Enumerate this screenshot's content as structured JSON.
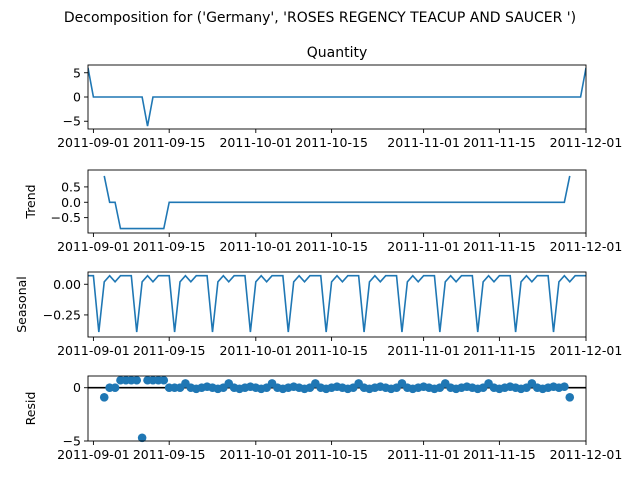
{
  "figure": {
    "suptitle": "Decomposition for ('Germany', 'ROSES REGENCY TEACUP AND SAUCER ')"
  },
  "colors": {
    "series": "#1f77b4",
    "axis": "#000000",
    "zero_line": "#000000"
  },
  "chart_data": [
    {
      "type": "line",
      "name": "observed",
      "title": "Quantity",
      "ylabel": "",
      "xlim": [
        "2011-08-31",
        "2011-12-01"
      ],
      "ylim": [
        -6.6,
        6.6
      ],
      "yticks": [
        -5,
        0,
        5
      ],
      "ytick_labels": [
        "−5",
        "0",
        "5"
      ],
      "xticks": [
        "2011-09-01",
        "2011-09-15",
        "2011-10-01",
        "2011-10-15",
        "2011-11-01",
        "2011-11-15",
        "2011-12-01"
      ],
      "grid": false,
      "x": [
        "2011-08-31",
        "2011-09-01",
        "2011-09-02",
        "2011-09-03",
        "2011-09-04",
        "2011-09-05",
        "2011-09-06",
        "2011-09-07",
        "2011-09-08",
        "2011-09-09",
        "2011-09-10",
        "2011-09-11",
        "2011-09-12",
        "2011-09-13",
        "2011-09-14",
        "2011-09-15",
        "2011-11-28",
        "2011-11-29",
        "2011-11-30",
        "2011-12-01"
      ],
      "values": [
        6,
        0,
        0,
        0,
        0,
        0,
        0,
        0,
        0,
        0,
        0,
        -6,
        0,
        0,
        0,
        0,
        0,
        0,
        0,
        6
      ],
      "fill_rest": 0
    },
    {
      "type": "line",
      "name": "trend",
      "title": "",
      "ylabel": "Trend",
      "xlim": [
        "2011-08-31",
        "2011-12-01"
      ],
      "ylim": [
        -1.0,
        1.05
      ],
      "yticks": [
        -0.5,
        0.0,
        0.5
      ],
      "ytick_labels": [
        "−0.5",
        "0.0",
        "0.5"
      ],
      "xticks": [
        "2011-09-01",
        "2011-09-15",
        "2011-10-01",
        "2011-10-15",
        "2011-11-01",
        "2011-11-15",
        "2011-12-01"
      ],
      "grid": false,
      "x": [
        "2011-09-03",
        "2011-09-04",
        "2011-09-05",
        "2011-09-06",
        "2011-09-07",
        "2011-09-08",
        "2011-09-09",
        "2011-09-10",
        "2011-09-11",
        "2011-09-12",
        "2011-09-13",
        "2011-09-14",
        "2011-09-15",
        "2011-11-27",
        "2011-11-28"
      ],
      "values": [
        0.857,
        0.0,
        0.0,
        -0.857,
        -0.857,
        -0.857,
        -0.857,
        -0.857,
        -0.857,
        -0.857,
        -0.857,
        -0.857,
        0.0,
        0.0,
        0.857
      ]
    },
    {
      "type": "line",
      "name": "seasonal",
      "title": "",
      "ylabel": "Seasonal",
      "xlim": [
        "2011-08-31",
        "2011-12-01"
      ],
      "ylim": [
        -0.43,
        0.1
      ],
      "yticks": [
        -0.25,
        0.0
      ],
      "ytick_labels": [
        "−0.25",
        "0.00"
      ],
      "xticks": [
        "2011-09-01",
        "2011-09-15",
        "2011-10-01",
        "2011-10-15",
        "2011-11-01",
        "2011-11-15",
        "2011-12-01"
      ],
      "grid": false,
      "start": "2011-08-31",
      "end": "2011-12-01",
      "period_pattern": [
        0.07,
        0.07,
        -0.39,
        0.02,
        0.07,
        0.02,
        0.07
      ]
    },
    {
      "type": "scatter",
      "name": "resid",
      "title": "",
      "ylabel": "Resid",
      "xlim": [
        "2011-08-31",
        "2011-12-01"
      ],
      "ylim": [
        -5.0,
        1.1
      ],
      "yticks": [
        -5,
        0
      ],
      "ytick_labels": [
        "−5",
        "0"
      ],
      "xticks": [
        "2011-09-01",
        "2011-09-15",
        "2011-10-01",
        "2011-10-15",
        "2011-11-01",
        "2011-11-15",
        "2011-12-01"
      ],
      "grid": false,
      "zero_line": true,
      "x": [
        "2011-09-03",
        "2011-09-04",
        "2011-09-05",
        "2011-09-06",
        "2011-09-07",
        "2011-09-08",
        "2011-09-09",
        "2011-09-10",
        "2011-09-11",
        "2011-09-12",
        "2011-09-13",
        "2011-09-14",
        "2011-09-15",
        "2011-09-16",
        "2011-09-17",
        "2011-09-18",
        "2011-09-19",
        "2011-09-20",
        "2011-09-21",
        "2011-09-22",
        "2011-09-23",
        "2011-09-24",
        "2011-09-25",
        "2011-09-26",
        "2011-09-27",
        "2011-09-28",
        "2011-09-29",
        "2011-09-30",
        "2011-10-01",
        "2011-10-02",
        "2011-10-03",
        "2011-10-04",
        "2011-10-05",
        "2011-10-06",
        "2011-10-07",
        "2011-10-08",
        "2011-10-09",
        "2011-10-10",
        "2011-10-11",
        "2011-10-12",
        "2011-10-13",
        "2011-10-14",
        "2011-10-15",
        "2011-10-16",
        "2011-10-17",
        "2011-10-18",
        "2011-10-19",
        "2011-10-20",
        "2011-10-21",
        "2011-10-22",
        "2011-10-23",
        "2011-10-24",
        "2011-10-25",
        "2011-10-26",
        "2011-10-27",
        "2011-10-28",
        "2011-10-29",
        "2011-10-30",
        "2011-10-31",
        "2011-11-01",
        "2011-11-02",
        "2011-11-03",
        "2011-11-04",
        "2011-11-05",
        "2011-11-06",
        "2011-11-07",
        "2011-11-08",
        "2011-11-09",
        "2011-11-10",
        "2011-11-11",
        "2011-11-12",
        "2011-11-13",
        "2011-11-14",
        "2011-11-15",
        "2011-11-16",
        "2011-11-17",
        "2011-11-18",
        "2011-11-19",
        "2011-11-20",
        "2011-11-21",
        "2011-11-22",
        "2011-11-23",
        "2011-11-24",
        "2011-11-25",
        "2011-11-26",
        "2011-11-27",
        "2011-11-28"
      ],
      "values": [
        -0.9,
        0.0,
        0.0,
        0.7,
        0.7,
        0.7,
        0.7,
        -4.7,
        0.7,
        0.7,
        0.7,
        0.7,
        0.0,
        0.0,
        0.0,
        0.4,
        0.0,
        -0.1,
        0.0,
        0.1,
        0.0,
        -0.1,
        0.0,
        0.4,
        0.0,
        -0.1,
        0.0,
        0.1,
        0.0,
        -0.1,
        0.0,
        0.4,
        0.0,
        -0.1,
        0.0,
        0.1,
        0.0,
        -0.1,
        0.0,
        0.4,
        0.0,
        -0.1,
        0.0,
        0.1,
        0.0,
        -0.1,
        0.0,
        0.4,
        0.0,
        -0.1,
        0.0,
        0.1,
        0.0,
        -0.1,
        0.0,
        0.4,
        0.0,
        -0.1,
        0.0,
        0.1,
        0.0,
        -0.1,
        0.0,
        0.4,
        0.0,
        -0.1,
        0.0,
        0.1,
        0.0,
        -0.1,
        0.0,
        0.4,
        0.0,
        -0.1,
        0.0,
        0.1,
        0.0,
        -0.1,
        0.0,
        0.4,
        0.0,
        -0.1,
        0.0,
        0.1,
        0.0,
        0.1,
        -0.9
      ]
    }
  ]
}
